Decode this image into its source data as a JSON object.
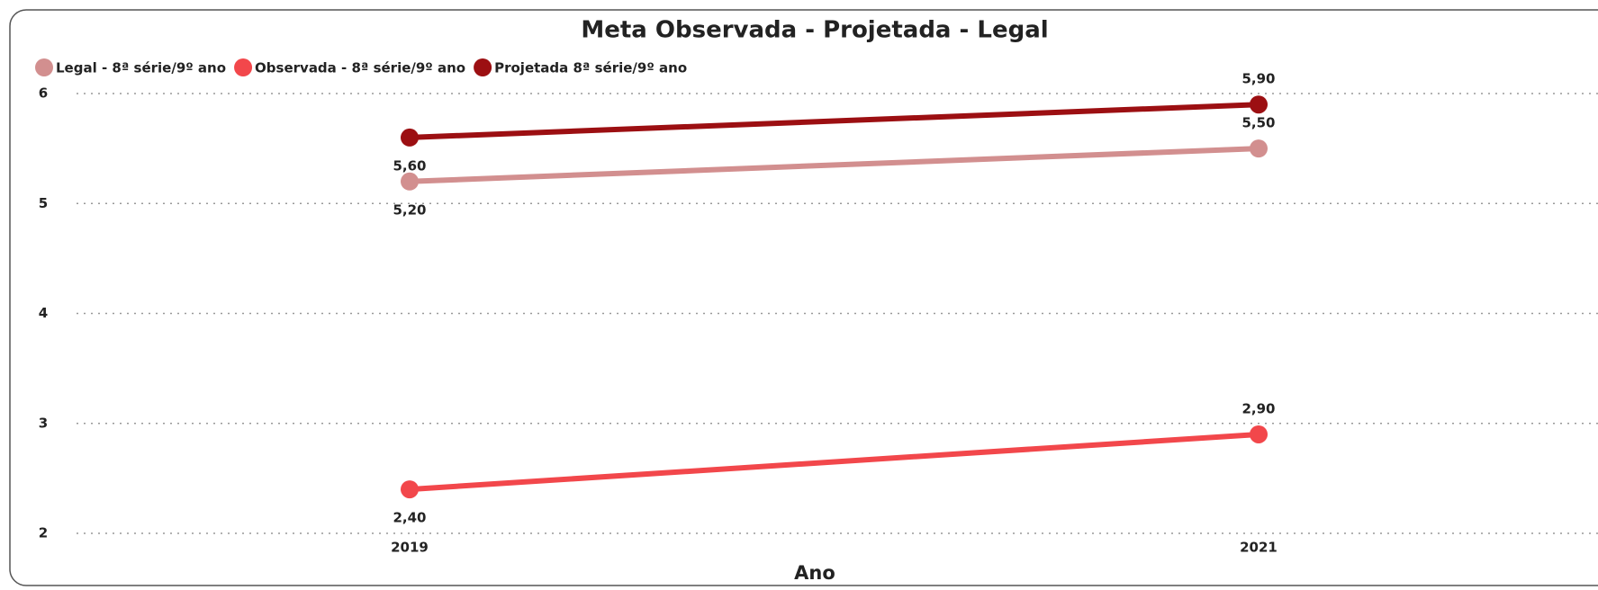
{
  "chart_data": {
    "type": "line",
    "title": "Meta Observada - Projetada - Legal",
    "x_label": "Ano",
    "categories": [
      "2019",
      "2021"
    ],
    "series": [
      {
        "name": "Legal - 8ª série/9º ano",
        "color": "#d28f8f",
        "values": [
          5.2,
          5.5
        ],
        "value_labels": [
          "5,20",
          "5,50"
        ]
      },
      {
        "name": "Observada - 8ª série/9º ano",
        "color": "#f2474b",
        "values": [
          2.4,
          2.9
        ],
        "value_labels": [
          "2,40",
          "2,90"
        ]
      },
      {
        "name": "Projetada 8ª série/9º ano",
        "color": "#9c0f12",
        "values": [
          5.6,
          5.9
        ],
        "value_labels": [
          "5,60",
          "5,90"
        ]
      }
    ],
    "ylim": [
      2,
      6
    ],
    "yticks": [
      2,
      3,
      4,
      5,
      6
    ],
    "grid": true,
    "legend": "top-left"
  }
}
